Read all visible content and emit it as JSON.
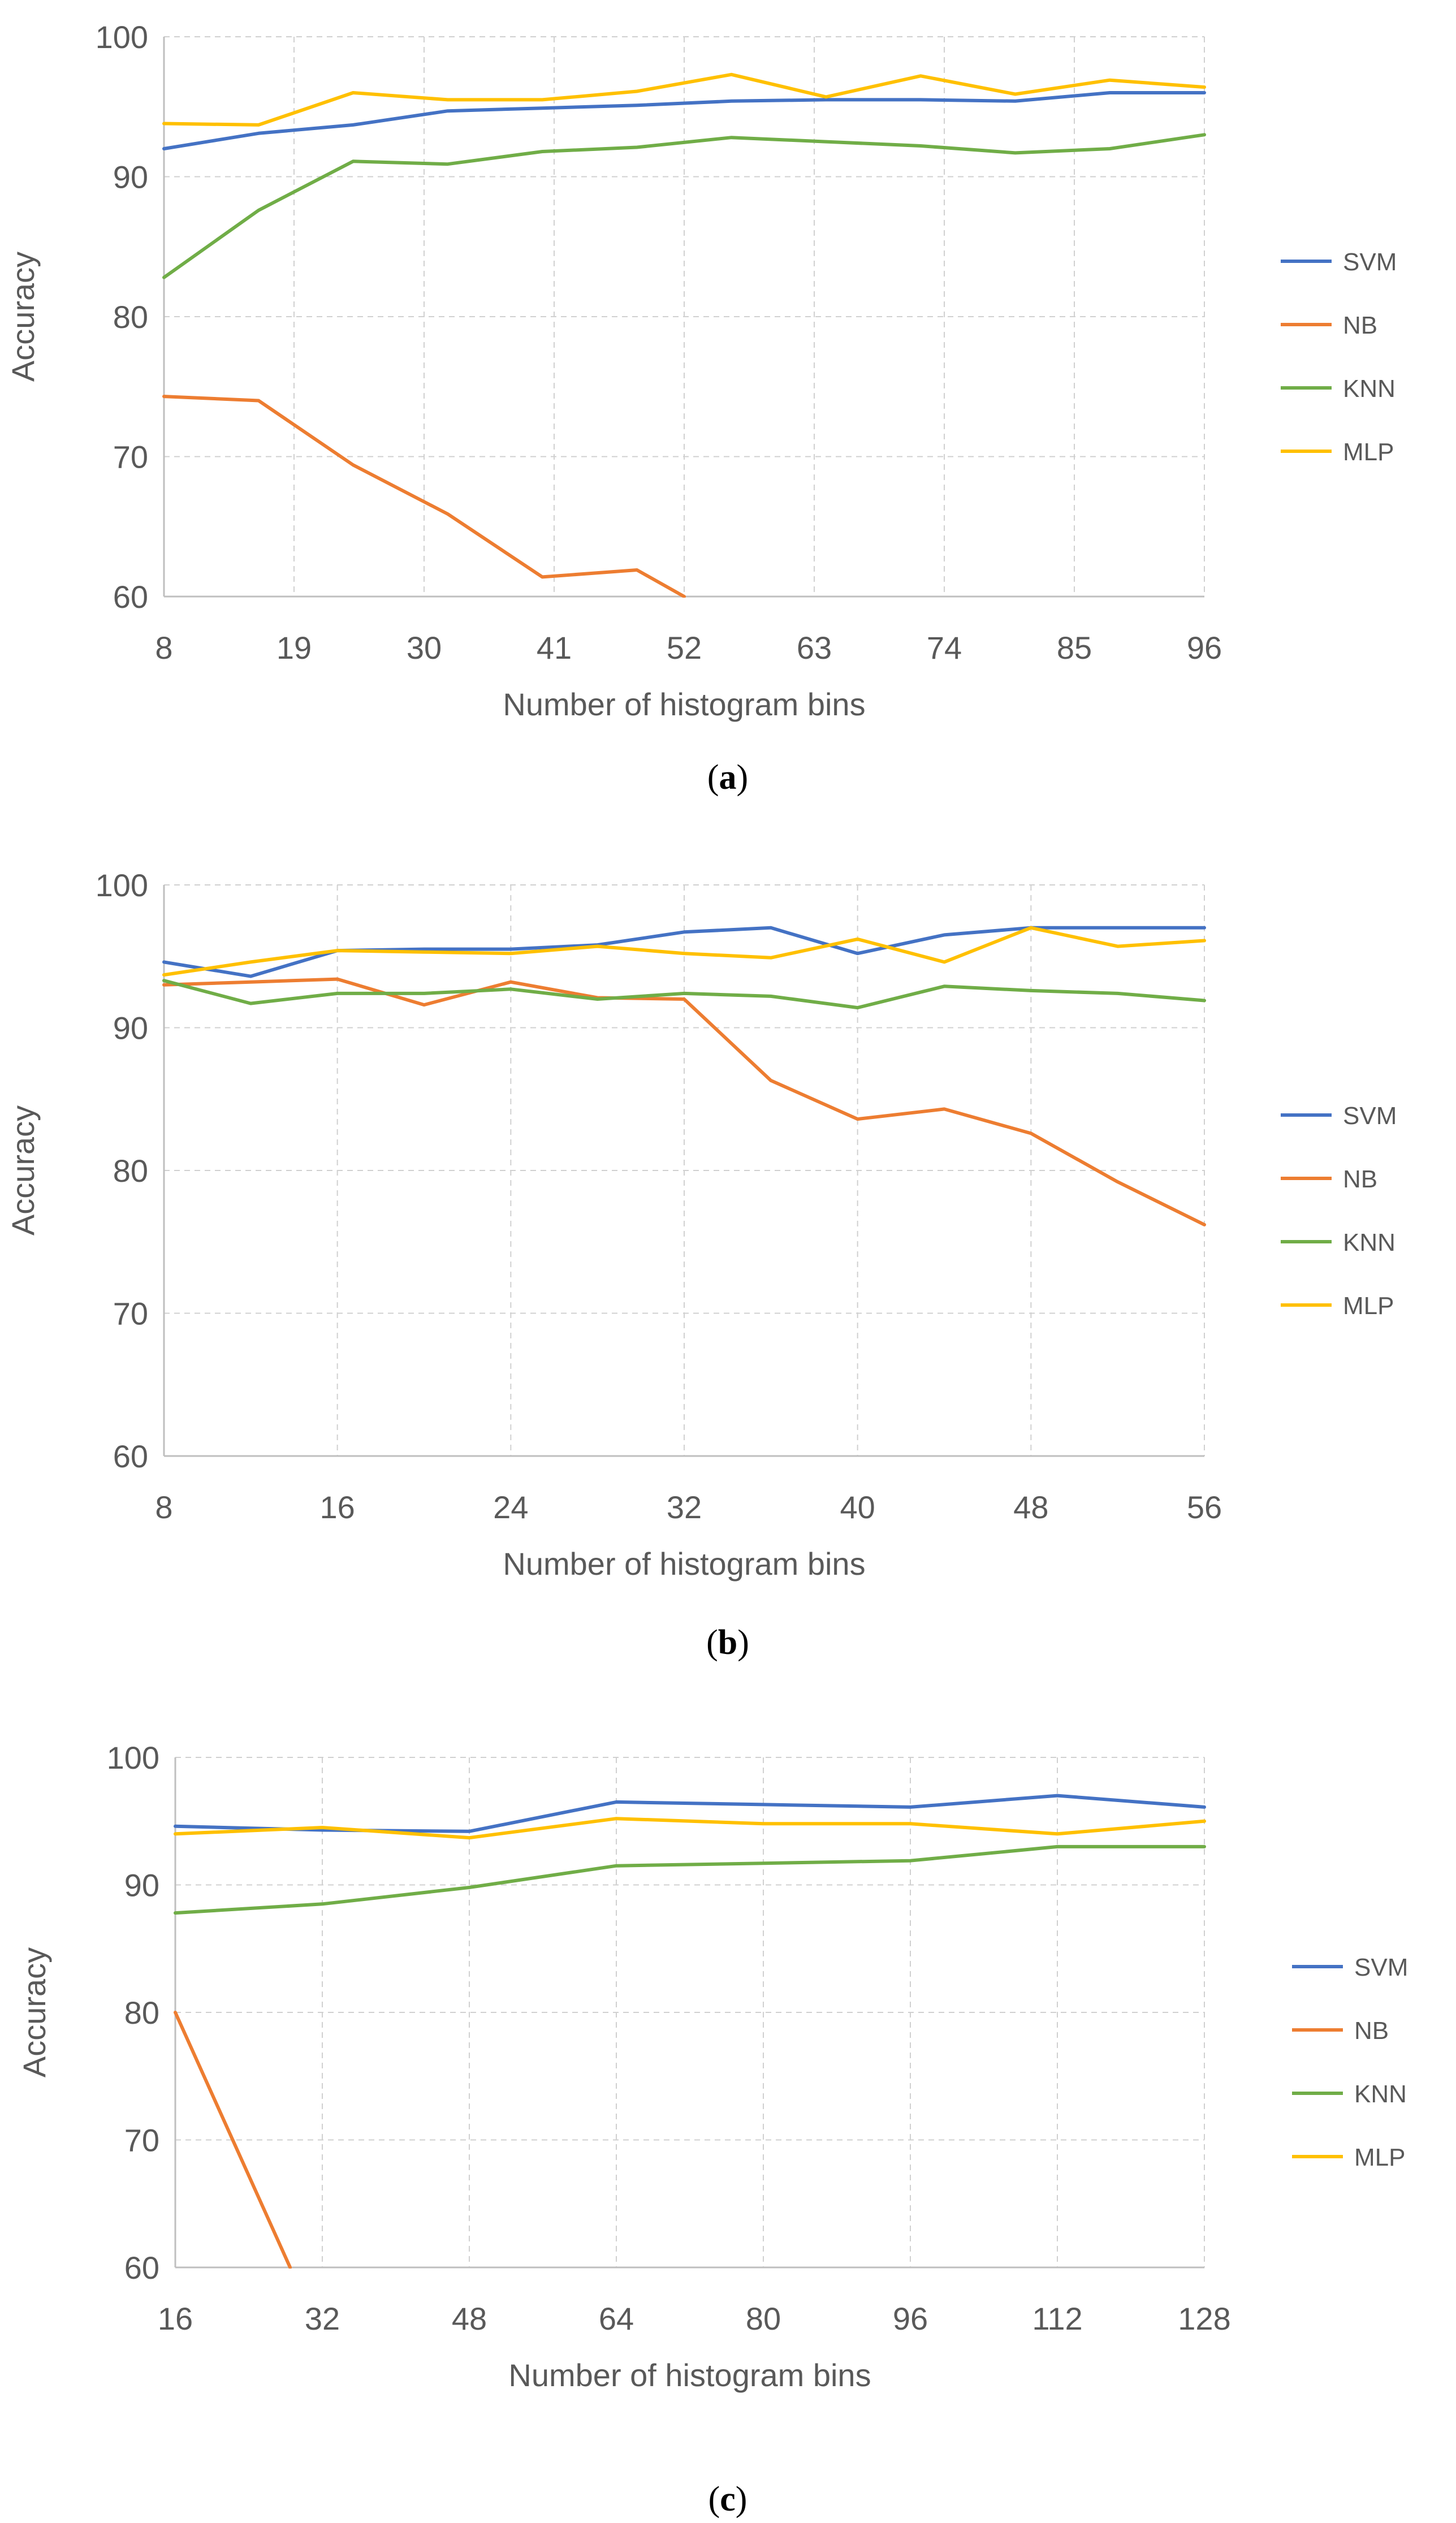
{
  "chart_data": [
    {
      "type": "line",
      "panel_label": "a",
      "xlabel": "Number of histogram bins",
      "ylabel": "Accuracy",
      "ylim": [
        60,
        100
      ],
      "yticks": [
        "60",
        "70",
        "80",
        "90",
        "100"
      ],
      "xticks": [
        "8",
        "19",
        "30",
        "41",
        "52",
        "63",
        "74",
        "85",
        "96"
      ],
      "xlim": [
        8,
        96
      ],
      "grid": true,
      "legend_position": "right",
      "series": [
        {
          "name": "SVM",
          "color": "#4472C4",
          "x": [
            8,
            16,
            24,
            32,
            40,
            48,
            56,
            64,
            72,
            80,
            88,
            96
          ],
          "values": [
            92.0,
            93.1,
            93.7,
            94.7,
            94.9,
            95.1,
            95.4,
            95.5,
            95.5,
            95.4,
            96.0,
            96.0
          ]
        },
        {
          "name": "NB",
          "color": "#ED7D31",
          "x": [
            8,
            16,
            24,
            32,
            40,
            48,
            52
          ],
          "values": [
            74.3,
            74.0,
            69.4,
            65.9,
            61.4,
            61.9,
            60.0
          ]
        },
        {
          "name": "KNN",
          "color": "#70AD47",
          "x": [
            8,
            16,
            24,
            32,
            40,
            48,
            56,
            64,
            72,
            80,
            88,
            96
          ],
          "values": [
            82.8,
            87.6,
            91.1,
            90.9,
            91.8,
            92.1,
            92.8,
            92.5,
            92.2,
            91.7,
            92.0,
            93.0
          ]
        },
        {
          "name": "MLP",
          "color": "#FFC000",
          "x": [
            8,
            16,
            24,
            32,
            40,
            48,
            56,
            64,
            72,
            80,
            88,
            96
          ],
          "values": [
            93.8,
            93.7,
            96.0,
            95.5,
            95.5,
            96.1,
            97.3,
            95.7,
            97.2,
            95.9,
            96.9,
            96.4
          ]
        }
      ]
    },
    {
      "type": "line",
      "panel_label": "b",
      "xlabel": "Number of histogram bins",
      "ylabel": "Accuracy",
      "ylim": [
        60,
        100
      ],
      "yticks": [
        "60",
        "70",
        "80",
        "90",
        "100"
      ],
      "xticks": [
        "8",
        "16",
        "24",
        "32",
        "40",
        "48",
        "56"
      ],
      "xlim": [
        8,
        56
      ],
      "grid": true,
      "legend_position": "right",
      "series": [
        {
          "name": "SVM",
          "color": "#4472C4",
          "x": [
            8,
            12,
            16,
            20,
            24,
            28,
            32,
            36,
            40,
            44,
            48,
            52,
            56
          ],
          "values": [
            94.6,
            93.6,
            95.4,
            95.5,
            95.5,
            95.8,
            96.7,
            97.0,
            95.2,
            96.5,
            97.0,
            97.0,
            97.0
          ]
        },
        {
          "name": "NB",
          "color": "#ED7D31",
          "x": [
            8,
            12,
            16,
            20,
            24,
            28,
            32,
            36,
            40,
            44,
            48,
            52,
            56
          ],
          "values": [
            93.0,
            93.2,
            93.4,
            91.6,
            93.2,
            92.1,
            92.0,
            86.3,
            83.6,
            84.3,
            82.6,
            79.2,
            76.2
          ]
        },
        {
          "name": "KNN",
          "color": "#70AD47",
          "x": [
            8,
            12,
            16,
            20,
            24,
            28,
            32,
            36,
            40,
            44,
            48,
            52,
            56
          ],
          "values": [
            93.3,
            91.7,
            92.4,
            92.4,
            92.7,
            92.0,
            92.4,
            92.2,
            91.4,
            92.9,
            92.6,
            92.4,
            91.9
          ]
        },
        {
          "name": "MLP",
          "color": "#FFC000",
          "x": [
            8,
            12,
            16,
            20,
            24,
            28,
            32,
            36,
            40,
            44,
            48,
            52,
            56
          ],
          "values": [
            93.7,
            94.6,
            95.4,
            95.3,
            95.2,
            95.7,
            95.2,
            94.9,
            96.2,
            94.6,
            97.0,
            95.7,
            96.1
          ]
        }
      ]
    },
    {
      "type": "line",
      "panel_label": "c",
      "xlabel": "Number of histogram bins",
      "ylabel": "Accuracy",
      "ylim": [
        60,
        100
      ],
      "yticks": [
        "60",
        "70",
        "80",
        "90",
        "100"
      ],
      "xticks": [
        "16",
        "32",
        "48",
        "64",
        "80",
        "96",
        "112",
        "128"
      ],
      "xlim": [
        16,
        128
      ],
      "grid": true,
      "legend_position": "right",
      "series": [
        {
          "name": "SVM",
          "color": "#4472C4",
          "x": [
            16,
            32,
            48,
            64,
            80,
            96,
            112,
            128
          ],
          "values": [
            94.6,
            94.3,
            94.2,
            96.5,
            96.3,
            96.1,
            97.0,
            96.1
          ]
        },
        {
          "name": "NB",
          "color": "#ED7D31",
          "x": [
            16,
            28.5
          ],
          "values": [
            80.0,
            60.0
          ]
        },
        {
          "name": "KNN",
          "color": "#70AD47",
          "x": [
            16,
            32,
            48,
            64,
            80,
            96,
            112,
            128
          ],
          "values": [
            87.8,
            88.5,
            89.8,
            91.5,
            91.7,
            91.9,
            93.0,
            93.0
          ]
        },
        {
          "name": "MLP",
          "color": "#FFC000",
          "x": [
            16,
            32,
            48,
            64,
            80,
            96,
            112,
            128
          ],
          "values": [
            94.0,
            94.5,
            93.7,
            95.2,
            94.8,
            94.8,
            94.0,
            95.0
          ]
        }
      ]
    }
  ]
}
